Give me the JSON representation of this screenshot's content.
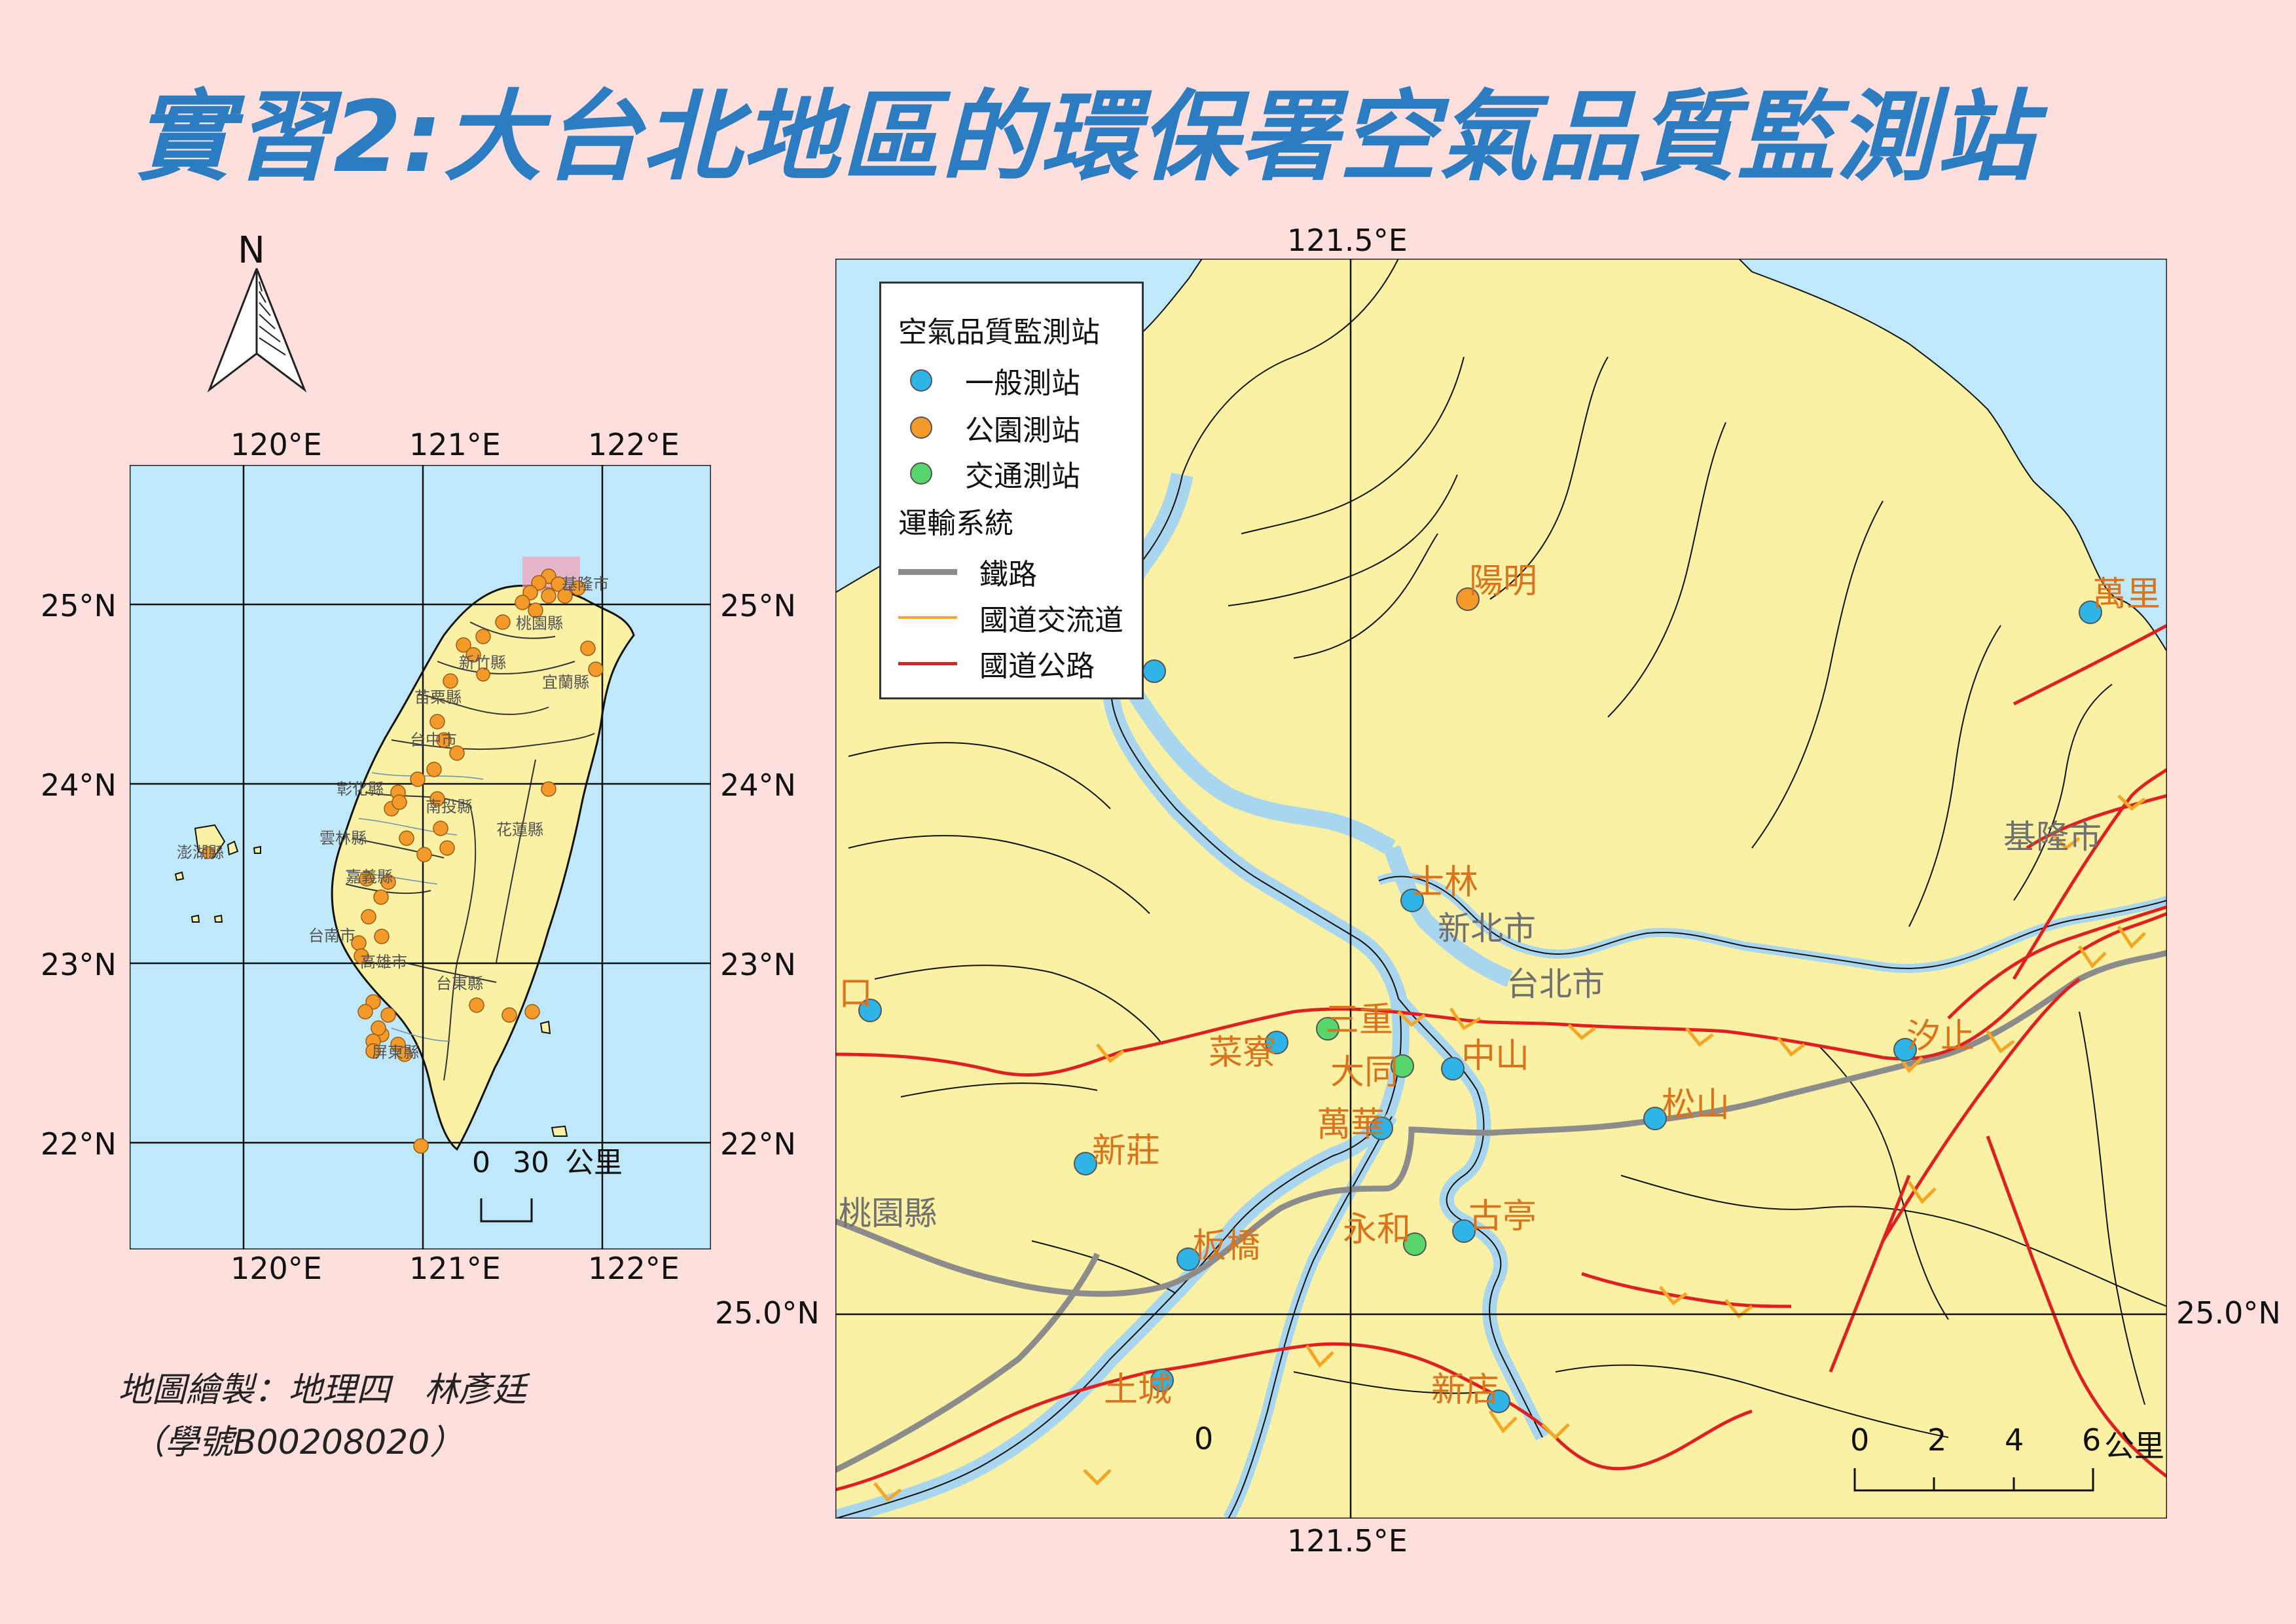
{
  "title": "實習2:大台北地區的環保署空氣品質監測站",
  "north_arrow": {
    "letter": "N"
  },
  "inset_map": {
    "top_lon_labels": [
      "120°E",
      "121°E",
      "122°E"
    ],
    "bottom_lon_labels": [
      "120°E",
      "121°E",
      "122°E"
    ],
    "left_lat_labels": [
      "25°N",
      "24°N",
      "23°N",
      "22°N"
    ],
    "right_lat_labels": [
      "25°N",
      "24°N",
      "23°N",
      "22°N"
    ],
    "scale": {
      "zero": "0",
      "value": "30",
      "unit": "公里"
    },
    "county_labels": [
      "桃園縣",
      "新竹縣",
      "宜蘭縣",
      "苗栗縣",
      "台中市",
      "彰化縣",
      "南投縣",
      "花蓮縣",
      "雲林縣",
      "嘉義縣",
      "台南市",
      "高雄市",
      "台東縣",
      "屏東縣",
      "澎湖縣",
      "基隆市"
    ]
  },
  "main_map": {
    "top_lon_label": "121.5°E",
    "bottom_lon_label": "121.5°E",
    "left_lat_label": "25.0°N",
    "right_lat_label": "25.0°N",
    "scale": {
      "ticks": [
        "0",
        "2",
        "4",
        "6"
      ],
      "unit": "公里"
    },
    "region_labels": [
      "基隆市",
      "新北市",
      "台北市",
      "桃園縣"
    ],
    "station_labels": [
      "陽明",
      "萬里",
      "士林",
      "口",
      "菜寮",
      "三重",
      "大同",
      "中山",
      "松山",
      "汐止",
      "萬華",
      "新莊",
      "板橋",
      "永和",
      "古亭",
      "土城",
      "新店"
    ]
  },
  "legend": {
    "title": "空氣品質監測站",
    "items": [
      {
        "label": "一般測站",
        "color": "#2fb4e8"
      },
      {
        "label": "公園測站",
        "color": "#f39a2b"
      },
      {
        "label": "交通測站",
        "color": "#56d66b"
      }
    ],
    "transport_title": "運輸系統",
    "lines": [
      {
        "label": "鐵路",
        "color": "#8c8c8c"
      },
      {
        "label": "國道交流道",
        "color": "#f5a623"
      },
      {
        "label": "國道公路",
        "color": "#e02020"
      }
    ]
  },
  "credit": {
    "line1": "地圖繪製：地理四　林彥廷",
    "line2": "（學號B00208020）"
  },
  "colors": {
    "sea": "#bfe9fb",
    "land": "#fbf1a4",
    "river": "#a9d6ef",
    "station_label": "#d9731d"
  }
}
